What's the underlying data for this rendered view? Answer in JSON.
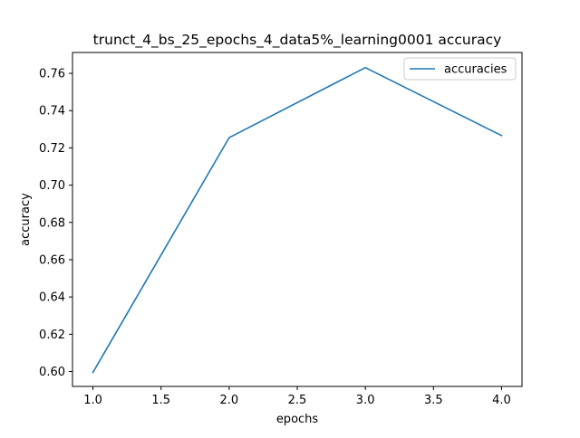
{
  "chart_data": {
    "type": "line",
    "title": "trunct_4_bs_25_epochs_4_data5%_learning0001 accuracy",
    "xlabel": "epochs",
    "ylabel": "accuracy",
    "xlim": [
      0.85,
      4.15
    ],
    "ylim": [
      0.592,
      0.7712
    ],
    "xticks": [
      1.0,
      1.5,
      2.0,
      2.5,
      3.0,
      3.5,
      4.0
    ],
    "xtick_labels": [
      "1.0",
      "1.5",
      "2.0",
      "2.5",
      "3.0",
      "3.5",
      "4.0"
    ],
    "yticks": [
      0.6,
      0.62,
      0.64,
      0.66,
      0.68,
      0.7,
      0.72,
      0.74,
      0.76
    ],
    "ytick_labels": [
      "0.60",
      "0.62",
      "0.64",
      "0.66",
      "0.68",
      "0.70",
      "0.72",
      "0.74",
      "0.76"
    ],
    "grid": false,
    "legend_position": "top-right",
    "series": [
      {
        "name": "accuracies",
        "color": "#1f77b4",
        "x": [
          1.0,
          2.0,
          3.0,
          4.0
        ],
        "y": [
          0.5995,
          0.7255,
          0.7631,
          0.7266
        ]
      }
    ]
  }
}
